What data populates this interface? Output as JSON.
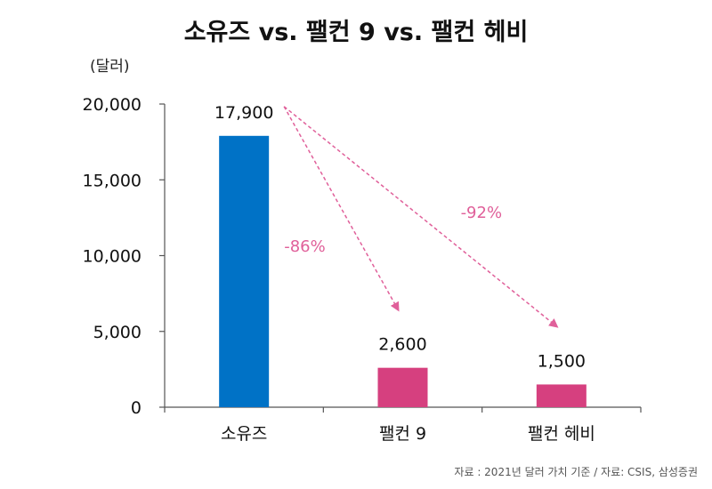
{
  "chart_data": {
    "type": "bar",
    "title": "소유즈 vs. 팰컨 9 vs. 팰컨 헤비",
    "unit_label": "(달러)",
    "categories": [
      "소유즈",
      "팰컨 9",
      "팰컨 헤비"
    ],
    "values": [
      17900,
      2600,
      1500
    ],
    "data_labels": [
      "17,900",
      "2,600",
      "1,500"
    ],
    "bar_colors": [
      "#0072c6",
      "#d6407f",
      "#d6407f"
    ],
    "ylim": [
      0,
      20000
    ],
    "yticks": [
      0,
      5000,
      10000,
      15000,
      20000
    ],
    "ytick_labels": [
      "0",
      "5,000",
      "10,000",
      "15,000",
      "20,000"
    ],
    "grid": false,
    "annotations": [
      {
        "text": "-86%",
        "from": "소유즈",
        "to": "팰컨 9",
        "color": "#e0609a"
      },
      {
        "text": "-92%",
        "from": "소유즈",
        "to": "팰컨 헤비",
        "color": "#e0609a"
      }
    ],
    "source": "자료 :  2021년 달러 가치 기준 / 자료: CSIS, 삼성증권"
  }
}
